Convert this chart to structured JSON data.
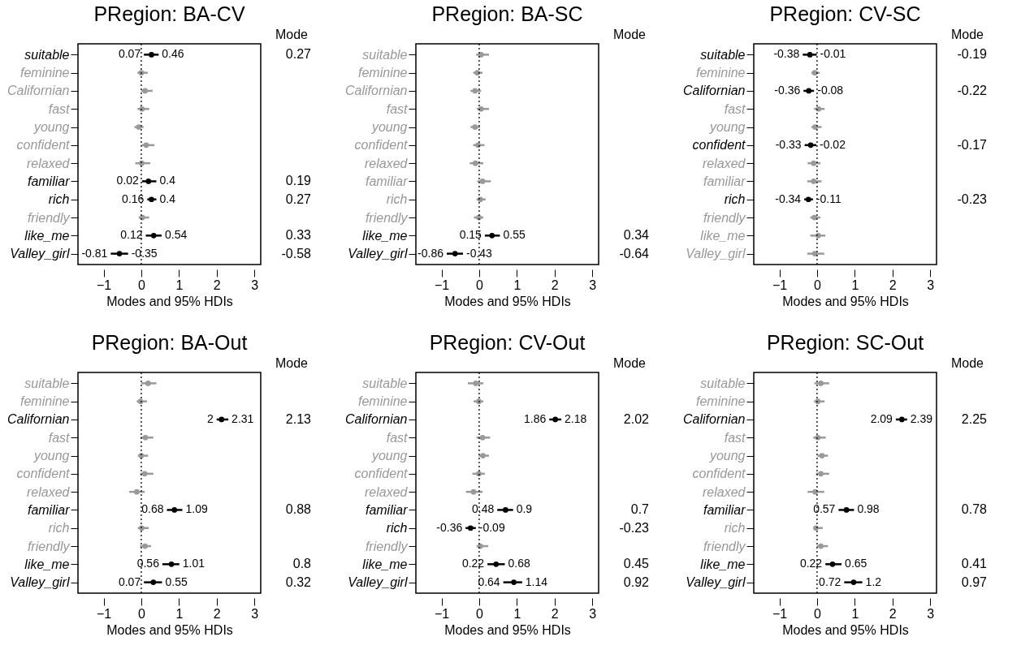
{
  "chart_data": [
    {
      "type": "scatter",
      "title": "PRegion: BA-CV",
      "xlabel": "Modes and 95% HDIs",
      "orientation": "horizontal",
      "marker": "circle",
      "xlim": [
        -1.68,
        3.17
      ],
      "xticks": [
        -1,
        0,
        1,
        2,
        3
      ],
      "categories": [
        "suitable",
        "feminine",
        "Californian",
        "fast",
        "young",
        "confident",
        "relaxed",
        "familiar",
        "rich",
        "friendly",
        "like_me",
        "Valley_girl"
      ],
      "values": [
        0.27,
        0,
        0.1,
        0.02,
        -0.07,
        0.13,
        0.01,
        0.19,
        0.27,
        0.03,
        0.33,
        -0.58
      ],
      "errors": [
        [
          0.07,
          0.46
        ],
        [
          -0.1,
          0.17
        ],
        [
          0,
          0.3
        ],
        [
          -0.1,
          0.21
        ],
        [
          -0.18,
          0.06
        ],
        [
          0.01,
          0.35
        ],
        [
          -0.16,
          0.24
        ],
        [
          0.02,
          0.4
        ],
        [
          0.16,
          0.4
        ],
        [
          -0.07,
          0.21
        ],
        [
          0.12,
          0.54
        ],
        [
          -0.81,
          -0.35
        ]
      ],
      "colors": [
        "#000000",
        "#999999",
        "#999999",
        "#999999",
        "#999999",
        "#999999",
        "#999999",
        "#000000",
        "#000000",
        "#999999",
        "#000000",
        "#000000"
      ],
      "value_labels": [
        "0.27",
        null,
        null,
        null,
        null,
        null,
        null,
        "0.19",
        "0.27",
        null,
        "0.33",
        "-0.58"
      ],
      "ref_lines": [
        {
          "axis": "x",
          "value": 0,
          "color": "#000000",
          "line_style": "dotted"
        }
      ],
      "annotations": [
        "Mode",
        {
          "text": "0.07",
          "x": 0.07,
          "y": "suitable"
        },
        {
          "text": "0.46",
          "x": 0.46,
          "y": "suitable"
        },
        {
          "text": "0.02",
          "x": 0.02,
          "y": "familiar"
        },
        {
          "text": "0.4",
          "x": 0.4,
          "y": "familiar"
        },
        {
          "text": "0.16",
          "x": 0.16,
          "y": "rich"
        },
        {
          "text": "0.4",
          "x": 0.4,
          "y": "rich"
        },
        {
          "text": "0.12",
          "x": 0.12,
          "y": "like_me"
        },
        {
          "text": "0.54",
          "x": 0.54,
          "y": "like_me"
        },
        {
          "text": "-0.81",
          "x": -0.81,
          "y": "Valley_girl"
        },
        {
          "text": "-0.35",
          "x": -0.35,
          "y": "Valley_girl"
        }
      ]
    },
    {
      "type": "scatter",
      "title": "PRegion: BA-SC",
      "xlabel": "Modes and 95% HDIs",
      "orientation": "horizontal",
      "marker": "circle",
      "xlim": [
        -1.68,
        3.17
      ],
      "xticks": [
        -1,
        0,
        1,
        2,
        3
      ],
      "categories": [
        "suitable",
        "feminine",
        "Californian",
        "fast",
        "young",
        "confident",
        "relaxed",
        "familiar",
        "rich",
        "friendly",
        "like_me",
        "Valley_girl"
      ],
      "values": [
        0.05,
        -0.05,
        -0.11,
        0.05,
        -0.11,
        -0.03,
        -0.1,
        0.09,
        0.03,
        -0.01,
        0.34,
        -0.64
      ],
      "errors": [
        [
          -0.08,
          0.26
        ],
        [
          -0.16,
          0.09
        ],
        [
          -0.23,
          0.05
        ],
        [
          -0.06,
          0.26
        ],
        [
          -0.23,
          0.02
        ],
        [
          -0.16,
          0.14
        ],
        [
          -0.25,
          0.11
        ],
        [
          -0.05,
          0.31
        ],
        [
          -0.07,
          0.17
        ],
        [
          -0.14,
          0.11
        ],
        [
          0.15,
          0.55
        ],
        [
          -0.86,
          -0.43
        ]
      ],
      "colors": [
        "#999999",
        "#999999",
        "#999999",
        "#999999",
        "#999999",
        "#999999",
        "#999999",
        "#999999",
        "#999999",
        "#999999",
        "#000000",
        "#000000"
      ],
      "value_labels": [
        null,
        null,
        null,
        null,
        null,
        null,
        null,
        null,
        null,
        null,
        "0.34",
        "-0.64"
      ],
      "ref_lines": [
        {
          "axis": "x",
          "value": 0,
          "color": "#000000",
          "line_style": "dotted"
        }
      ],
      "annotations": [
        "Mode",
        {
          "text": "0.15",
          "x": 0.15,
          "y": "like_me"
        },
        {
          "text": "0.55",
          "x": 0.55,
          "y": "like_me"
        },
        {
          "text": "-0.86",
          "x": -0.86,
          "y": "Valley_girl"
        },
        {
          "text": "-0.43",
          "x": -0.43,
          "y": "Valley_girl"
        }
      ]
    },
    {
      "type": "scatter",
      "title": "PRegion: CV-SC",
      "xlabel": "Modes and 95% HDIs",
      "orientation": "horizontal",
      "marker": "circle",
      "xlim": [
        -1.68,
        3.17
      ],
      "xticks": [
        -1,
        0,
        1,
        2,
        3
      ],
      "categories": [
        "suitable",
        "feminine",
        "Californian",
        "fast",
        "young",
        "confident",
        "relaxed",
        "familiar",
        "rich",
        "friendly",
        "like_me",
        "Valley_girl"
      ],
      "values": [
        -0.19,
        -0.06,
        -0.22,
        0.04,
        -0.05,
        -0.17,
        -0.09,
        -0.09,
        -0.23,
        -0.07,
        0.03,
        -0.06
      ],
      "errors": [
        [
          -0.38,
          -0.01
        ],
        [
          -0.15,
          0.07
        ],
        [
          -0.36,
          -0.08
        ],
        [
          -0.08,
          0.2
        ],
        [
          -0.15,
          0.12
        ],
        [
          -0.33,
          -0.02
        ],
        [
          -0.25,
          0.09
        ],
        [
          -0.26,
          0.12
        ],
        [
          -0.34,
          -0.11
        ],
        [
          -0.18,
          0.09
        ],
        [
          -0.18,
          0.22
        ],
        [
          -0.26,
          0.19
        ]
      ],
      "colors": [
        "#000000",
        "#999999",
        "#000000",
        "#999999",
        "#999999",
        "#000000",
        "#999999",
        "#999999",
        "#000000",
        "#999999",
        "#999999",
        "#999999"
      ],
      "value_labels": [
        "-0.19",
        null,
        "-0.22",
        null,
        null,
        "-0.17",
        null,
        null,
        "-0.23",
        null,
        null,
        null
      ],
      "ref_lines": [
        {
          "axis": "x",
          "value": 0,
          "color": "#000000",
          "line_style": "dotted"
        }
      ],
      "annotations": [
        "Mode",
        {
          "text": "-0.38",
          "x": -0.38,
          "y": "suitable"
        },
        {
          "text": "-0.01",
          "x": -0.01,
          "y": "suitable"
        },
        {
          "text": "-0.36",
          "x": -0.36,
          "y": "Californian"
        },
        {
          "text": "-0.08",
          "x": -0.08,
          "y": "Californian"
        },
        {
          "text": "-0.33",
          "x": -0.33,
          "y": "confident"
        },
        {
          "text": "-0.02",
          "x": -0.02,
          "y": "confident"
        },
        {
          "text": "-0.34",
          "x": -0.34,
          "y": "rich"
        },
        {
          "text": "-0.11",
          "x": -0.11,
          "y": "rich"
        }
      ]
    },
    {
      "type": "scatter",
      "title": "PRegion: BA-Out",
      "xlabel": "Modes and 95% HDIs",
      "orientation": "horizontal",
      "marker": "circle",
      "xlim": [
        -1.68,
        3.17
      ],
      "xticks": [
        -1,
        0,
        1,
        2,
        3
      ],
      "categories": [
        "suitable",
        "feminine",
        "Californian",
        "fast",
        "young",
        "confident",
        "relaxed",
        "familiar",
        "rich",
        "friendly",
        "like_me",
        "Valley_girl"
      ],
      "values": [
        0.18,
        -0.02,
        2.13,
        0.11,
        0,
        0.09,
        -0.12,
        0.88,
        0.01,
        0.1,
        0.8,
        0.32
      ],
      "errors": [
        [
          0,
          0.4
        ],
        [
          -0.12,
          0.15
        ],
        [
          2,
          2.31
        ],
        [
          -0.02,
          0.32
        ],
        [
          -0.09,
          0.18
        ],
        [
          -0.03,
          0.32
        ],
        [
          -0.32,
          0.09
        ],
        [
          0.68,
          1.09
        ],
        [
          -0.09,
          0.2
        ],
        [
          -0.03,
          0.26
        ],
        [
          0.56,
          1.01
        ],
        [
          0.07,
          0.55
        ]
      ],
      "colors": [
        "#999999",
        "#999999",
        "#000000",
        "#999999",
        "#999999",
        "#999999",
        "#999999",
        "#000000",
        "#999999",
        "#999999",
        "#000000",
        "#000000"
      ],
      "value_labels": [
        null,
        null,
        "2.13",
        null,
        null,
        null,
        null,
        "0.88",
        null,
        null,
        "0.8",
        "0.32"
      ],
      "ref_lines": [
        {
          "axis": "x",
          "value": 0,
          "color": "#000000",
          "line_style": "dotted"
        }
      ],
      "annotations": [
        "Mode",
        {
          "text": "2",
          "x": 2,
          "y": "Californian"
        },
        {
          "text": "2.31",
          "x": 2.31,
          "y": "Californian"
        },
        {
          "text": "0.68",
          "x": 0.68,
          "y": "familiar"
        },
        {
          "text": "1.09",
          "x": 1.09,
          "y": "familiar"
        },
        {
          "text": "0.56",
          "x": 0.56,
          "y": "like_me"
        },
        {
          "text": "1.01",
          "x": 1.01,
          "y": "like_me"
        },
        {
          "text": "0.07",
          "x": 0.07,
          "y": "Valley_girl"
        },
        {
          "text": "0.55",
          "x": 0.55,
          "y": "Valley_girl"
        }
      ]
    },
    {
      "type": "scatter",
      "title": "PRegion: CV-Out",
      "xlabel": "Modes and 95% HDIs",
      "orientation": "horizontal",
      "marker": "circle",
      "xlim": [
        -1.68,
        3.17
      ],
      "xticks": [
        -1,
        0,
        1,
        2,
        3
      ],
      "categories": [
        "suitable",
        "feminine",
        "Californian",
        "fast",
        "young",
        "confident",
        "relaxed",
        "familiar",
        "rich",
        "friendly",
        "like_me",
        "Valley_girl"
      ],
      "values": [
        -0.09,
        -0.01,
        2.02,
        0.09,
        0.1,
        -0.01,
        -0.15,
        0.7,
        -0.23,
        0.03,
        0.45,
        0.92
      ],
      "errors": [
        [
          -0.3,
          0.11
        ],
        [
          -0.15,
          0.11
        ],
        [
          1.86,
          2.18
        ],
        [
          -0.07,
          0.29
        ],
        [
          -0.01,
          0.26
        ],
        [
          -0.18,
          0.15
        ],
        [
          -0.35,
          0.09
        ],
        [
          0.48,
          0.9
        ],
        [
          -0.36,
          -0.09
        ],
        [
          -0.07,
          0.24
        ],
        [
          0.22,
          0.68
        ],
        [
          0.64,
          1.14
        ]
      ],
      "colors": [
        "#999999",
        "#999999",
        "#000000",
        "#999999",
        "#999999",
        "#999999",
        "#999999",
        "#000000",
        "#000000",
        "#999999",
        "#000000",
        "#000000"
      ],
      "value_labels": [
        null,
        null,
        "2.02",
        null,
        null,
        null,
        null,
        "0.7",
        "-0.23",
        null,
        "0.45",
        "0.92"
      ],
      "ref_lines": [
        {
          "axis": "x",
          "value": 0,
          "color": "#000000",
          "line_style": "dotted"
        }
      ],
      "annotations": [
        "Mode",
        {
          "text": "1.86",
          "x": 1.86,
          "y": "Californian"
        },
        {
          "text": "2.18",
          "x": 2.18,
          "y": "Californian"
        },
        {
          "text": "0.48",
          "x": 0.48,
          "y": "familiar"
        },
        {
          "text": "0.9",
          "x": 0.9,
          "y": "familiar"
        },
        {
          "text": "-0.36",
          "x": -0.36,
          "y": "rich"
        },
        {
          "text": "-0.09",
          "x": -0.09,
          "y": "rich"
        },
        {
          "text": "0.22",
          "x": 0.22,
          "y": "like_me"
        },
        {
          "text": "0.68",
          "x": 0.68,
          "y": "like_me"
        },
        {
          "text": "0.64",
          "x": 0.64,
          "y": "Valley_girl"
        },
        {
          "text": "1.14",
          "x": 1.14,
          "y": "Valley_girl"
        }
      ]
    },
    {
      "type": "scatter",
      "title": "PRegion: SC-Out",
      "xlabel": "Modes and 95% HDIs",
      "orientation": "horizontal",
      "marker": "circle",
      "xlim": [
        -1.68,
        3.17
      ],
      "xticks": [
        -1,
        0,
        1,
        2,
        3
      ],
      "categories": [
        "suitable",
        "feminine",
        "Californian",
        "fast",
        "young",
        "confident",
        "relaxed",
        "familiar",
        "rich",
        "friendly",
        "like_me",
        "Valley_girl"
      ],
      "values": [
        0.1,
        0.02,
        2.25,
        0.02,
        0.13,
        0.1,
        -0.05,
        0.78,
        -0.03,
        0.1,
        0.41,
        0.97
      ],
      "errors": [
        [
          -0.07,
          0.32
        ],
        [
          -0.08,
          0.2
        ],
        [
          2.09,
          2.39
        ],
        [
          -0.1,
          0.23
        ],
        [
          0.01,
          0.29
        ],
        [
          -0.03,
          0.32
        ],
        [
          -0.25,
          0.19
        ],
        [
          0.57,
          0.98
        ],
        [
          -0.1,
          0.15
        ],
        [
          -0.01,
          0.29
        ],
        [
          0.22,
          0.65
        ],
        [
          0.72,
          1.2
        ]
      ],
      "colors": [
        "#999999",
        "#999999",
        "#000000",
        "#999999",
        "#999999",
        "#999999",
        "#999999",
        "#000000",
        "#999999",
        "#999999",
        "#000000",
        "#000000"
      ],
      "value_labels": [
        null,
        null,
        "2.25",
        null,
        null,
        null,
        null,
        "0.78",
        null,
        null,
        "0.41",
        "0.97"
      ],
      "ref_lines": [
        {
          "axis": "x",
          "value": 0,
          "color": "#000000",
          "line_style": "dotted"
        }
      ],
      "annotations": [
        "Mode",
        {
          "text": "2.09",
          "x": 2.09,
          "y": "Californian"
        },
        {
          "text": "2.39",
          "x": 2.39,
          "y": "Californian"
        },
        {
          "text": "0.57",
          "x": 0.57,
          "y": "familiar"
        },
        {
          "text": "0.98",
          "x": 0.98,
          "y": "familiar"
        },
        {
          "text": "0.22",
          "x": 0.22,
          "y": "like_me"
        },
        {
          "text": "0.65",
          "x": 0.65,
          "y": "like_me"
        },
        {
          "text": "0.72",
          "x": 0.72,
          "y": "Valley_girl"
        },
        {
          "text": "1.2",
          "x": 1.2,
          "y": "Valley_girl"
        }
      ]
    }
  ]
}
